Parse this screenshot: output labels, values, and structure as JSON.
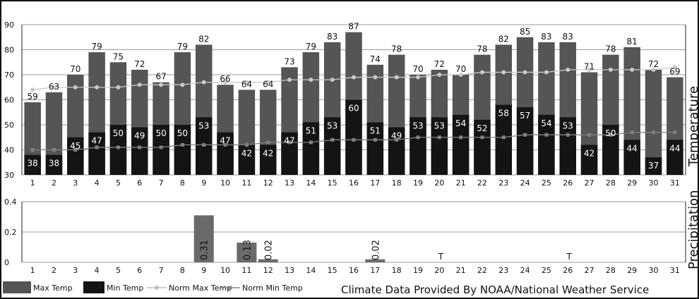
{
  "chart_data": [
    {
      "type": "bar",
      "side_title": "Temperature",
      "ylim": [
        30,
        90
      ],
      "yticks": [
        30,
        40,
        50,
        60,
        70,
        80,
        90
      ],
      "categories": [
        "1",
        "2",
        "3",
        "4",
        "5",
        "6",
        "7",
        "8",
        "9",
        "10",
        "11",
        "12",
        "13",
        "14",
        "15",
        "16",
        "17",
        "18",
        "19",
        "20",
        "21",
        "22",
        "23",
        "24",
        "25",
        "26",
        "27",
        "28",
        "29",
        "30",
        "31"
      ],
      "series": [
        {
          "name": "Max Temp",
          "color": "#555555",
          "values": [
            59,
            63,
            70,
            79,
            75,
            72,
            67,
            79,
            82,
            66,
            64,
            64,
            73,
            79,
            83,
            87,
            74,
            78,
            70,
            72,
            70,
            78,
            82,
            85,
            83,
            83,
            71,
            78,
            81,
            72,
            69
          ]
        },
        {
          "name": "Min Temp",
          "color": "#141414",
          "values": [
            38,
            38,
            45,
            47,
            50,
            49,
            50,
            50,
            53,
            47,
            42,
            42,
            47,
            51,
            53,
            60,
            51,
            49,
            53,
            53,
            54,
            52,
            58,
            57,
            54,
            53,
            42,
            50,
            44,
            37,
            44
          ]
        },
        {
          "name": "Norm Max Temp",
          "color": "#c8c8c8",
          "values": [
            64,
            65,
            65,
            65,
            65,
            66,
            66,
            66,
            67,
            67,
            67,
            67,
            68,
            68,
            68,
            69,
            69,
            69,
            69,
            70,
            70,
            71,
            71,
            71,
            71,
            72,
            72,
            72,
            72,
            72,
            73
          ]
        },
        {
          "name": "Norm Min Temp",
          "color": "#808080",
          "values": [
            40,
            40,
            40,
            41,
            41,
            41,
            41,
            42,
            42,
            42,
            42,
            43,
            43,
            43,
            44,
            44,
            44,
            44,
            45,
            45,
            45,
            45,
            45,
            46,
            46,
            46,
            46,
            46,
            47,
            47,
            47
          ]
        }
      ]
    },
    {
      "type": "bar",
      "side_title": "Precipitation",
      "ylim": [
        0,
        0.4
      ],
      "yticks": [
        "0",
        "0.2",
        "0.4"
      ],
      "categories": [
        "1",
        "2",
        "3",
        "4",
        "5",
        "6",
        "7",
        "8",
        "9",
        "10",
        "11",
        "12",
        "13",
        "14",
        "15",
        "16",
        "17",
        "18",
        "19",
        "20",
        "21",
        "22",
        "23",
        "24",
        "25",
        "26",
        "27",
        "28",
        "29",
        "30",
        "31"
      ],
      "values": [
        0,
        0,
        0,
        0,
        0,
        0,
        0,
        0,
        0.31,
        0,
        0.13,
        0.02,
        0,
        0,
        0,
        0,
        0.02,
        0,
        0,
        0,
        0,
        0,
        0,
        0,
        0,
        0,
        0,
        0,
        0,
        0,
        0
      ],
      "labels": [
        {
          "day": "9",
          "text": "0.31"
        },
        {
          "day": "11",
          "text": "0.13"
        },
        {
          "day": "12",
          "text": "0.02"
        },
        {
          "day": "17",
          "text": "0.02"
        }
      ],
      "trace": [
        {
          "day": "20",
          "text": "T"
        },
        {
          "day": "26",
          "text": "T"
        }
      ],
      "color": "#6a6a6a"
    }
  ],
  "legend": [
    {
      "label": "Max Temp",
      "kind": "box",
      "color": "#555555"
    },
    {
      "label": "Min Temp",
      "kind": "box",
      "color": "#141414"
    },
    {
      "label": "Norm Max Temp",
      "kind": "line",
      "color": "#bdbdbd"
    },
    {
      "label": "Norm Min Temp",
      "kind": "line",
      "color": "#8a8a8a"
    }
  ],
  "credit": "Climate Data Provided By NOAA/National Weather Service"
}
